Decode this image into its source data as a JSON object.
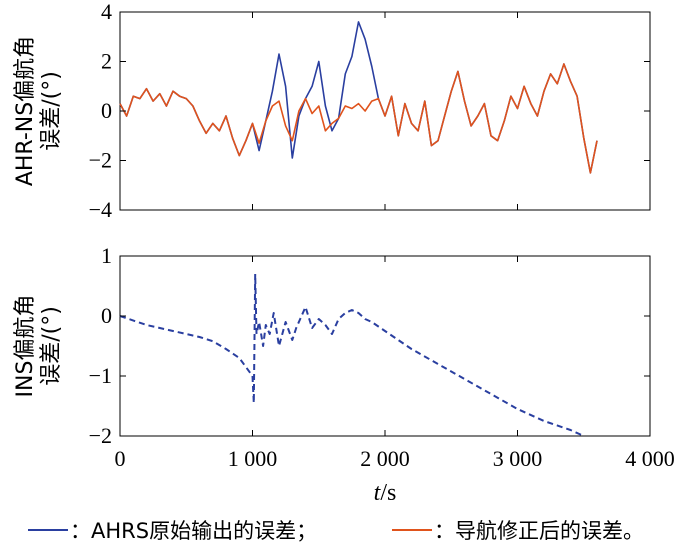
{
  "chart_data": [
    {
      "type": "line",
      "ylabel_lines": [
        "AHR-NS偏航角",
        "误差/(°)"
      ],
      "xlim": [
        0,
        4000
      ],
      "ylim": [
        -4,
        4
      ],
      "yticks": [
        -4,
        -2,
        0,
        2,
        4
      ],
      "ytick_labels": [
        "−4",
        "−2",
        "0",
        "2",
        "4"
      ],
      "series": [
        {
          "color": "#2a3fa0",
          "style": "solid",
          "x": [
            0,
            50,
            100,
            150,
            200,
            250,
            300,
            350,
            400,
            450,
            500,
            550,
            600,
            650,
            700,
            750,
            800,
            850,
            900,
            950,
            1000,
            1050,
            1100,
            1150,
            1200,
            1250,
            1300,
            1350,
            1400,
            1450,
            1500,
            1550,
            1600,
            1650,
            1700,
            1750,
            1800,
            1850,
            1900,
            1950,
            2000,
            2050,
            2100,
            2150,
            2200,
            2250,
            2300,
            2350,
            2400,
            2450,
            2500,
            2550,
            2600,
            2650,
            2700,
            2750,
            2800,
            2850,
            2900,
            2950,
            3000,
            3050,
            3100,
            3150,
            3200,
            3250,
            3300,
            3350,
            3400,
            3450,
            3500,
            3550,
            3600
          ],
          "y": [
            0.3,
            -0.2,
            0.6,
            0.5,
            0.9,
            0.4,
            0.7,
            0.2,
            0.8,
            0.6,
            0.5,
            0.2,
            -0.4,
            -0.9,
            -0.5,
            -0.8,
            -0.2,
            -1.1,
            -1.8,
            -1.2,
            -0.5,
            -1.6,
            -0.4,
            0.8,
            2.3,
            1.0,
            -1.9,
            -0.2,
            0.5,
            1.0,
            2.0,
            0.2,
            -0.8,
            -0.3,
            1.5,
            2.2,
            3.6,
            2.9,
            1.8,
            0.5,
            -0.2,
            0.6,
            -1.0,
            0.3,
            -0.5,
            -0.8,
            0.4,
            -1.4,
            -1.2,
            -0.2,
            0.8,
            1.6,
            0.4,
            -0.6,
            -0.2,
            0.3,
            -1.0,
            -1.2,
            -0.4,
            0.6,
            0.1,
            1.0,
            0.3,
            -0.2,
            0.8,
            1.5,
            1.1,
            1.9,
            1.2,
            0.6,
            -1.1,
            -2.5,
            -1.2
          ]
        },
        {
          "color": "#e0531c",
          "style": "solid",
          "x": [
            0,
            50,
            100,
            150,
            200,
            250,
            300,
            350,
            400,
            450,
            500,
            550,
            600,
            650,
            700,
            750,
            800,
            850,
            900,
            950,
            1000,
            1050,
            1100,
            1150,
            1200,
            1250,
            1300,
            1350,
            1400,
            1450,
            1500,
            1550,
            1600,
            1650,
            1700,
            1750,
            1800,
            1850,
            1900,
            1950,
            2000,
            2050,
            2100,
            2150,
            2200,
            2250,
            2300,
            2350,
            2400,
            2450,
            2500,
            2550,
            2600,
            2650,
            2700,
            2750,
            2800,
            2850,
            2900,
            2950,
            3000,
            3050,
            3100,
            3150,
            3200,
            3250,
            3300,
            3350,
            3400,
            3450,
            3500,
            3550,
            3600
          ],
          "y": [
            0.3,
            -0.2,
            0.6,
            0.5,
            0.9,
            0.4,
            0.7,
            0.2,
            0.8,
            0.6,
            0.5,
            0.2,
            -0.4,
            -0.9,
            -0.5,
            -0.8,
            -0.2,
            -1.1,
            -1.8,
            -1.2,
            -0.5,
            -1.3,
            -0.4,
            0.2,
            0.4,
            -0.6,
            -1.2,
            0.0,
            0.5,
            -0.1,
            0.2,
            -0.8,
            -0.5,
            -0.3,
            0.2,
            0.1,
            0.3,
            0.0,
            0.4,
            0.5,
            -0.2,
            0.6,
            -1.0,
            0.3,
            -0.5,
            -0.8,
            0.4,
            -1.4,
            -1.2,
            -0.2,
            0.8,
            1.6,
            0.4,
            -0.6,
            -0.2,
            0.3,
            -1.0,
            -1.2,
            -0.4,
            0.6,
            0.1,
            1.0,
            0.3,
            -0.2,
            0.8,
            1.5,
            1.1,
            1.9,
            1.2,
            0.6,
            -1.1,
            -2.5,
            -1.2
          ]
        }
      ]
    },
    {
      "type": "line",
      "ylabel_lines": [
        "INS偏航角",
        "误差/(°)"
      ],
      "xlabel_italic": "t",
      "xlabel_rest": "/s",
      "xlim": [
        0,
        4000
      ],
      "ylim": [
        -2,
        1
      ],
      "yticks": [
        -2,
        -1,
        0,
        1
      ],
      "ytick_labels": [
        "−2",
        "−1",
        "0",
        "1"
      ],
      "xticks": [
        0,
        1000,
        2000,
        3000,
        4000
      ],
      "xtick_labels": [
        "0",
        "1 000",
        "2 000",
        "3 000",
        "4 000"
      ],
      "series": [
        {
          "color": "#2a3fa0",
          "style": "dashed",
          "x": [
            0,
            200,
            400,
            600,
            700,
            800,
            900,
            950,
            1000,
            1010,
            1020,
            1030,
            1050,
            1080,
            1100,
            1130,
            1160,
            1200,
            1250,
            1300,
            1330,
            1360,
            1400,
            1450,
            1500,
            1550,
            1600,
            1650,
            1700,
            1750,
            1800,
            1850,
            1900,
            2000,
            2200,
            2400,
            2600,
            2800,
            3000,
            3200,
            3400,
            3500
          ],
          "y": [
            0.0,
            -0.15,
            -0.25,
            -0.35,
            -0.42,
            -0.55,
            -0.7,
            -0.85,
            -1.0,
            -1.45,
            0.7,
            -0.3,
            -0.1,
            -0.5,
            -0.15,
            -0.3,
            0.05,
            -0.5,
            -0.1,
            -0.4,
            -0.2,
            -0.05,
            0.15,
            -0.2,
            -0.05,
            -0.15,
            -0.3,
            -0.05,
            0.05,
            0.1,
            0.05,
            -0.05,
            -0.1,
            -0.25,
            -0.55,
            -0.8,
            -1.05,
            -1.3,
            -1.55,
            -1.75,
            -1.9,
            -2.0
          ]
        }
      ]
    }
  ],
  "legend": {
    "items": [
      {
        "color": "#2a3fa0",
        "label": "：AHRS原始输出的误差；"
      },
      {
        "color": "#e0531c",
        "label": "：导航修正后的误差。"
      }
    ]
  }
}
